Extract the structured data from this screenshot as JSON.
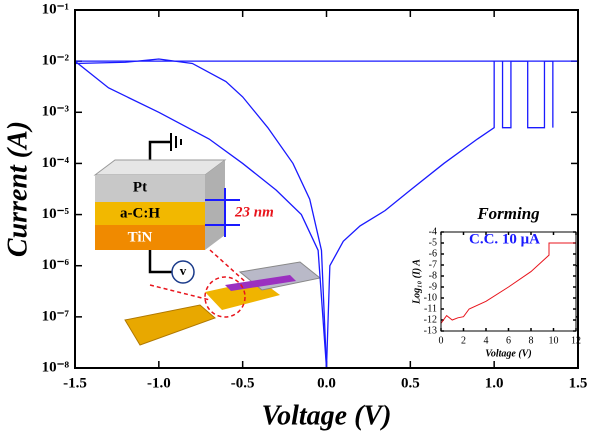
{
  "chart_data": [
    {
      "type": "line",
      "xlabel": "Voltage (V)",
      "ylabel": "Current (A)",
      "xlim": [
        -1.5,
        1.5
      ],
      "ylim": [
        1e-08,
        0.1
      ],
      "yscale": "log",
      "xticks": [
        -1.5,
        {
          "value": -1,
          "label": "-1.0"
        },
        -0.5,
        {
          "value": 0,
          "label": "0.0"
        },
        0.5,
        {
          "value": 1,
          "label": "1.0"
        },
        1.5
      ],
      "yticks": [
        {
          "value": 1e-08,
          "label": "10⁻⁸"
        },
        {
          "value": 1e-07,
          "label": "10⁻⁷"
        },
        {
          "value": 1e-06,
          "label": "10⁻⁶"
        },
        {
          "value": 1e-05,
          "label": "10⁻⁵"
        },
        {
          "value": 0.0001,
          "label": "10⁻⁴"
        },
        {
          "value": 0.001,
          "label": "10⁻³"
        },
        {
          "value": 0.01,
          "label": "10⁻²"
        },
        {
          "value": 0.1,
          "label": "10⁻¹"
        }
      ],
      "series": [
        {
          "color": "#1a1aff",
          "x": [
            0,
            0.02,
            0.1,
            0.2,
            0.35,
            0.5,
            0.7,
            0.9,
            1.0,
            1.0,
            1.5,
            -1.2,
            -1.5,
            -1.3,
            -1.0,
            -0.7,
            -0.5,
            -0.3,
            -0.15,
            -0.05,
            0
          ],
          "values": [
            1e-08,
            1e-06,
            3e-06,
            6e-06,
            1.2e-05,
            3e-05,
            0.0001,
            0.0003,
            0.0005,
            0.01,
            0.01,
            0.01,
            0.01,
            0.003,
            0.001,
            0.0003,
            0.0001,
            3e-05,
            1e-05,
            2e-06,
            1e-08
          ]
        },
        {
          "color": "#1a1aff",
          "x": [
            -1.5,
            -1.2,
            -1.0,
            -0.8,
            -0.6,
            -0.5,
            -0.35,
            -0.2,
            -0.1,
            -0.03,
            0,
            null,
            1.05,
            1.05,
            1.1,
            1.1,
            1.2,
            1.2,
            1.3,
            1.3,
            1.35,
            1.35
          ],
          "values": [
            0.009,
            0.0095,
            0.011,
            0.009,
            0.004,
            0.002,
            0.0005,
            0.0001,
            2e-05,
            2e-06,
            1e-08,
            null,
            0.01,
            0.0005,
            0.0005,
            0.01,
            0.01,
            0.0005,
            0.0005,
            0.01,
            0.01,
            0.0005
          ]
        }
      ],
      "annotations": [
        "Pt",
        "a-C:H",
        "TiN",
        "23 nm",
        "v"
      ]
    },
    {
      "type": "line",
      "title": "Forming",
      "annotation": "C.C. 10 μA",
      "xlabel": "Voltage (V)",
      "ylabel": "Log₁₀ (I) A",
      "xlim": [
        0,
        12
      ],
      "ylim": [
        -13,
        -4
      ],
      "xticks": [
        0,
        2,
        4,
        6,
        8,
        10,
        12
      ],
      "yticks": [
        -13,
        -12,
        -11,
        -10,
        -9,
        -8,
        -7,
        -6,
        -5,
        -4
      ],
      "series": [
        {
          "color": "#e8141c",
          "x": [
            0,
            0.5,
            1,
            1.5,
            2,
            2.5,
            4,
            6,
            8,
            9.6,
            9.6,
            12
          ],
          "values": [
            -12.3,
            -11.6,
            -12,
            -11.8,
            -11.7,
            -11,
            -10.3,
            -9,
            -7.6,
            -6.1,
            -5,
            -5
          ]
        }
      ]
    }
  ]
}
